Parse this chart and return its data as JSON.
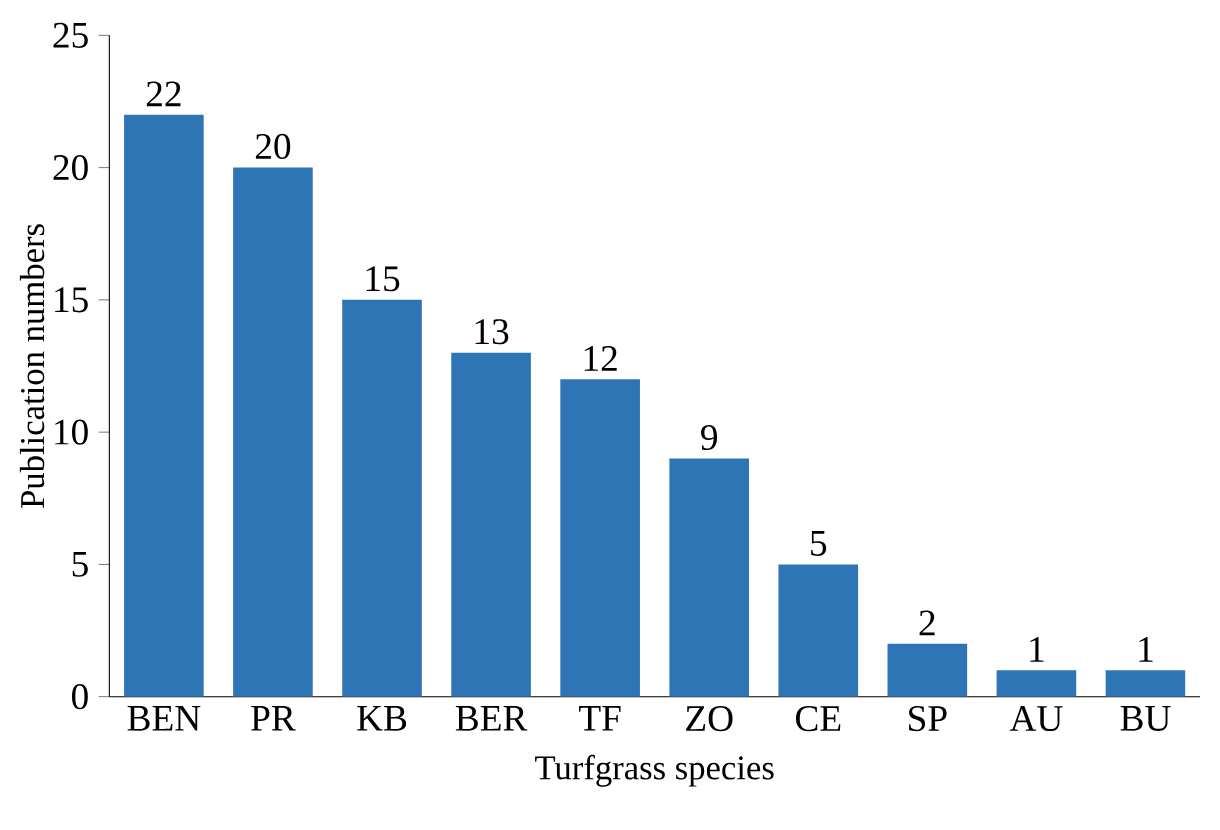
{
  "chart_data": {
    "type": "bar",
    "xlabel": "Turfgrass species",
    "ylabel": "Publication numbers",
    "categories": [
      "BEN",
      "PR",
      "KB",
      "BER",
      "TF",
      "ZO",
      "CE",
      "SP",
      "AU",
      "BU"
    ],
    "values": [
      22,
      20,
      15,
      13,
      12,
      9,
      5,
      2,
      1,
      1
    ],
    "color": "#2e75b6",
    "ylim": [
      0,
      25
    ],
    "yticks": [
      0,
      5,
      10,
      15,
      20,
      25
    ],
    "data_labels": true,
    "grid": false
  }
}
